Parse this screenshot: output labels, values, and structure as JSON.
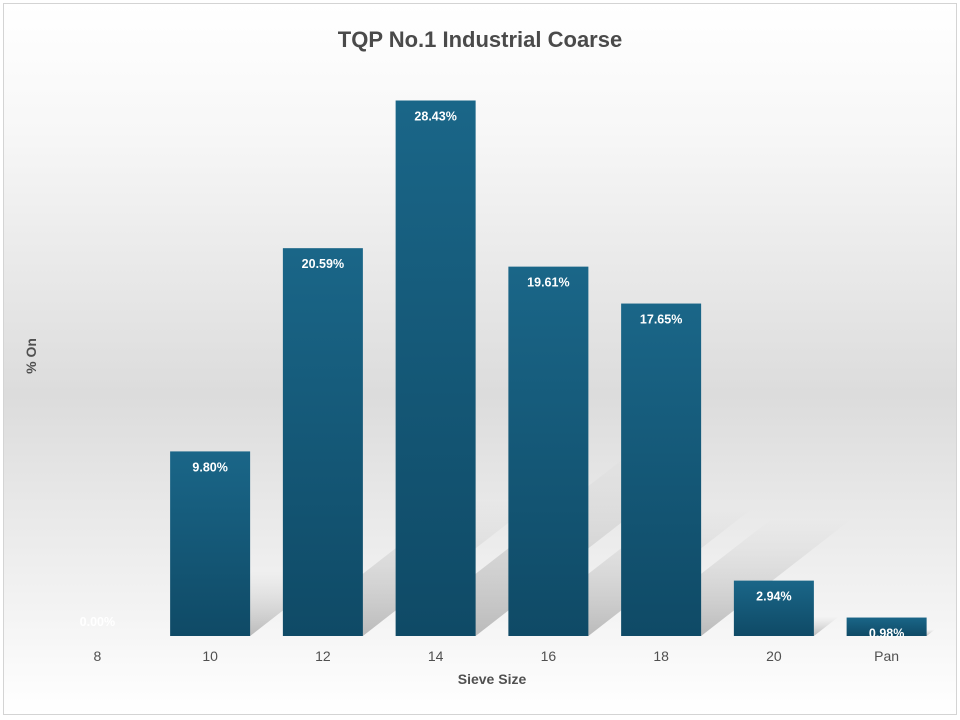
{
  "chart_data": {
    "type": "bar",
    "title": "TQP No.1 Industrial Coarse",
    "xlabel": "Sieve Size",
    "ylabel": "% On",
    "categories": [
      "8",
      "10",
      "12",
      "14",
      "16",
      "18",
      "20",
      "Pan"
    ],
    "values": [
      0.0,
      9.8,
      20.59,
      28.43,
      19.61,
      17.65,
      2.94,
      0.98
    ],
    "data_labels": [
      "0.00%",
      "9.80%",
      "20.59%",
      "28.43%",
      "19.61%",
      "17.65%",
      "2.94%",
      "0.98%"
    ],
    "ylim": [
      0,
      30
    ],
    "grid": false,
    "legend": "none",
    "bar_color": "#175f80",
    "bar_color_dark": "#0f4a66",
    "shadow_color": "#b9b9b9"
  }
}
